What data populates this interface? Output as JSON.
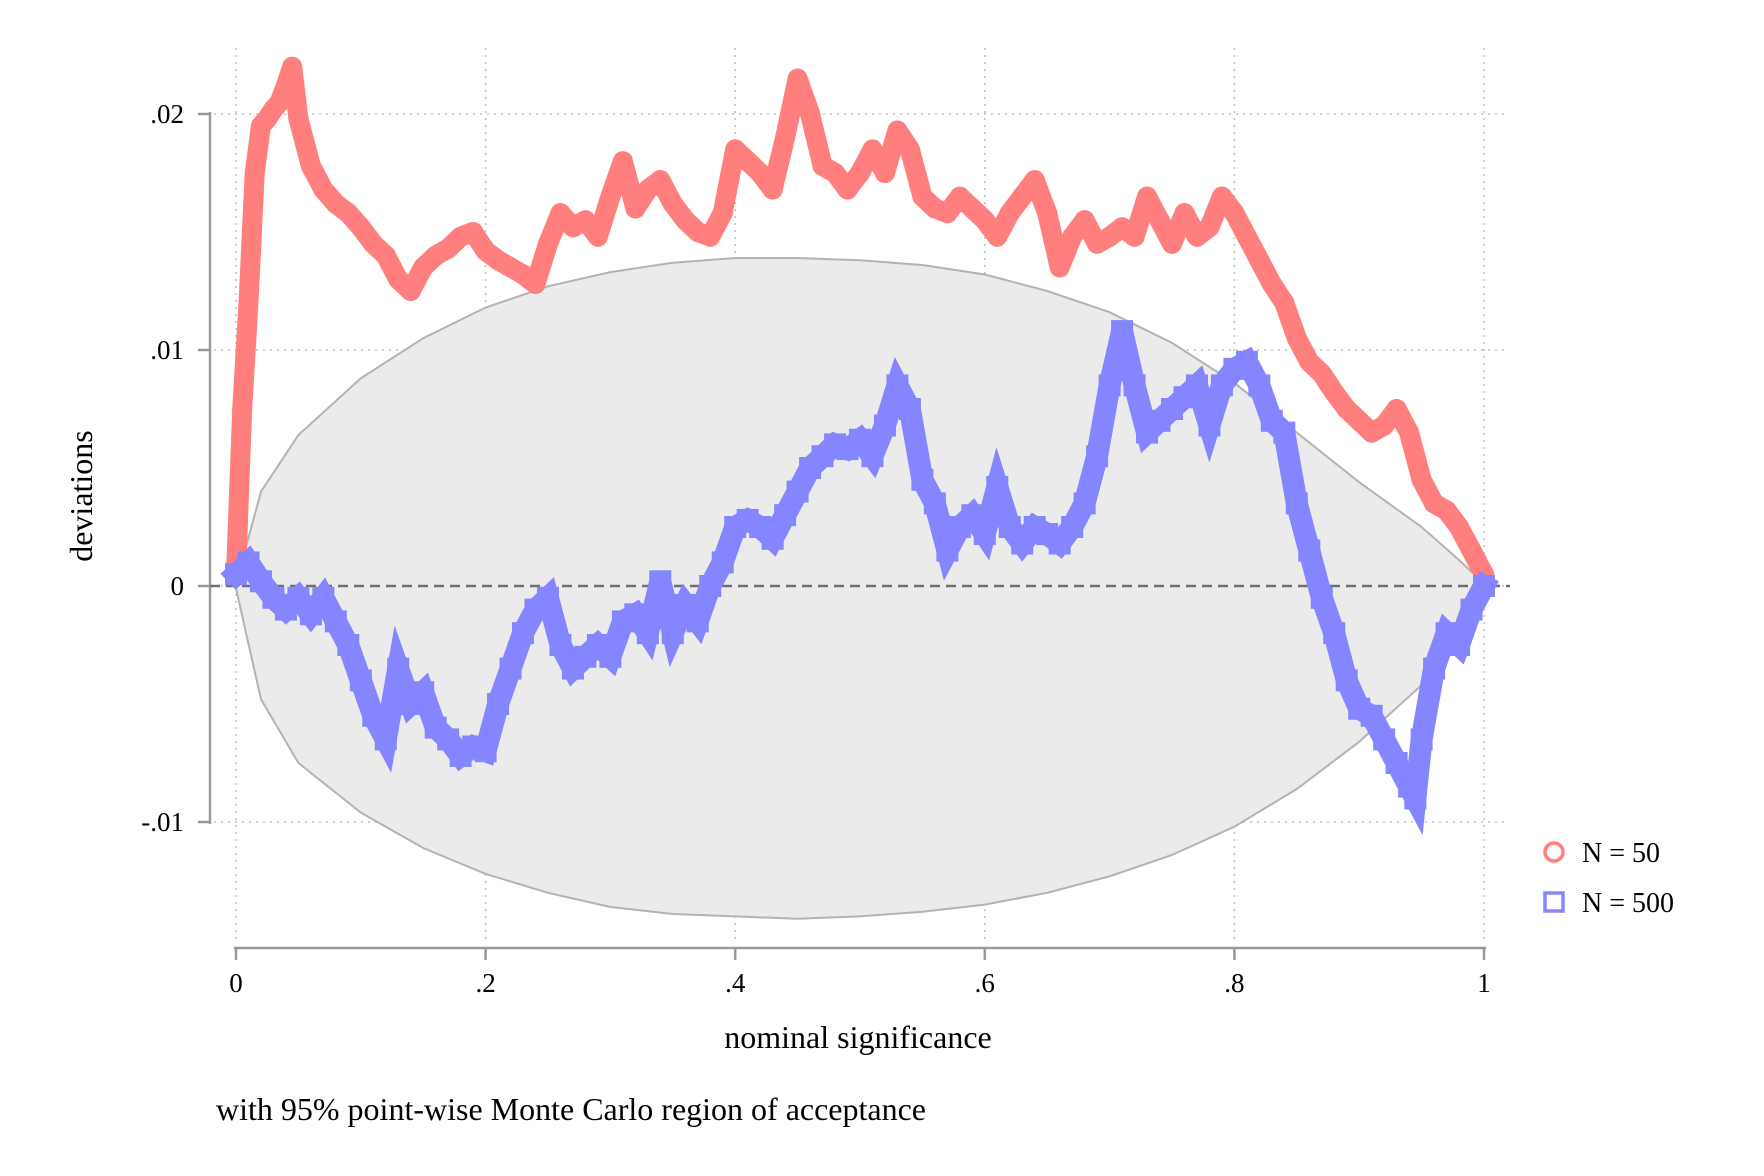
{
  "colors": {
    "n50": "#ff7f7f",
    "n500": "#8585ff",
    "band_fill": "#ebebeb",
    "band_stroke": "#b3b3b3",
    "grid": "#bfbfbf",
    "axis": "#999999",
    "zero_line": "#6e6e6e"
  },
  "chart_data": {
    "type": "line",
    "title": "",
    "xlabel": "nominal significance",
    "ylabel": "deviations",
    "note": "with 95% point-wise Monte Carlo region of acceptance",
    "xlim": [
      0,
      1
    ],
    "ylim": [
      -0.015,
      0.0225
    ],
    "x_ticks": [
      0,
      0.2,
      0.4,
      0.6,
      0.8,
      1
    ],
    "x_tick_labels": [
      "0",
      ".2",
      ".4",
      ".6",
      ".8",
      "1"
    ],
    "y_ticks": [
      -0.01,
      0,
      0.01,
      0.02
    ],
    "y_tick_labels": [
      "-.01",
      "0",
      ".01",
      ".02"
    ],
    "grid": true,
    "reference_line": {
      "y": 0,
      "style": "dashed"
    },
    "legend": {
      "position": "bottom-right",
      "entries": [
        "N = 50",
        "N = 500"
      ]
    },
    "acceptance_region": {
      "description_from_note": "95% point-wise Monte Carlo region of acceptance",
      "x": [
        0,
        0.02,
        0.05,
        0.1,
        0.15,
        0.2,
        0.25,
        0.3,
        0.35,
        0.4,
        0.45,
        0.5,
        0.55,
        0.6,
        0.65,
        0.7,
        0.75,
        0.8,
        0.85,
        0.9,
        0.95,
        0.98,
        1
      ],
      "upper": [
        0.0001,
        0.004,
        0.0064,
        0.0088,
        0.0105,
        0.0118,
        0.0127,
        0.0133,
        0.0137,
        0.0139,
        0.0139,
        0.0138,
        0.0136,
        0.0132,
        0.0125,
        0.0116,
        0.0103,
        0.0086,
        0.0065,
        0.0044,
        0.0025,
        0.0011,
        0.0001
      ],
      "lower": [
        -0.0001,
        -0.0048,
        -0.0075,
        -0.0096,
        -0.0111,
        -0.0122,
        -0.013,
        -0.0136,
        -0.0139,
        -0.014,
        -0.0141,
        -0.014,
        -0.0138,
        -0.0135,
        -0.013,
        -0.0123,
        -0.0114,
        -0.0102,
        -0.0086,
        -0.0066,
        -0.0042,
        -0.0022,
        -0.0001
      ]
    },
    "series": [
      {
        "name": "N = 50",
        "marker": "circle",
        "x": [
          0,
          0.005,
          0.01,
          0.015,
          0.02,
          0.025,
          0.03,
          0.035,
          0.04,
          0.045,
          0.05,
          0.06,
          0.07,
          0.08,
          0.09,
          0.1,
          0.11,
          0.12,
          0.13,
          0.14,
          0.15,
          0.16,
          0.17,
          0.18,
          0.19,
          0.2,
          0.21,
          0.22,
          0.23,
          0.24,
          0.25,
          0.26,
          0.27,
          0.28,
          0.29,
          0.3,
          0.31,
          0.32,
          0.33,
          0.34,
          0.35,
          0.36,
          0.37,
          0.38,
          0.39,
          0.4,
          0.41,
          0.42,
          0.43,
          0.44,
          0.45,
          0.46,
          0.47,
          0.48,
          0.49,
          0.5,
          0.51,
          0.52,
          0.53,
          0.54,
          0.55,
          0.56,
          0.57,
          0.58,
          0.59,
          0.6,
          0.61,
          0.62,
          0.63,
          0.64,
          0.65,
          0.66,
          0.67,
          0.68,
          0.69,
          0.7,
          0.71,
          0.72,
          0.73,
          0.74,
          0.75,
          0.76,
          0.77,
          0.78,
          0.79,
          0.8,
          0.81,
          0.82,
          0.83,
          0.84,
          0.85,
          0.86,
          0.87,
          0.88,
          0.89,
          0.9,
          0.91,
          0.92,
          0.93,
          0.94,
          0.95,
          0.96,
          0.97,
          0.98,
          0.99,
          1
        ],
        "values": [
          0.0005,
          0.0075,
          0.012,
          0.0175,
          0.0195,
          0.0198,
          0.0202,
          0.0205,
          0.0212,
          0.022,
          0.0198,
          0.0178,
          0.0168,
          0.0162,
          0.0158,
          0.0152,
          0.0145,
          0.014,
          0.013,
          0.0125,
          0.0135,
          0.014,
          0.0143,
          0.0148,
          0.015,
          0.0142,
          0.0138,
          0.0135,
          0.0132,
          0.0128,
          0.0145,
          0.0158,
          0.0152,
          0.0155,
          0.0148,
          0.0165,
          0.018,
          0.016,
          0.0168,
          0.0172,
          0.0162,
          0.0155,
          0.015,
          0.0148,
          0.0158,
          0.0185,
          0.018,
          0.0175,
          0.0168,
          0.019,
          0.0215,
          0.02,
          0.0178,
          0.0175,
          0.0168,
          0.0175,
          0.0185,
          0.0175,
          0.0193,
          0.0185,
          0.0165,
          0.016,
          0.0158,
          0.0165,
          0.016,
          0.0155,
          0.0148,
          0.0158,
          0.0165,
          0.0172,
          0.0158,
          0.0135,
          0.0148,
          0.0155,
          0.0145,
          0.0148,
          0.0152,
          0.0148,
          0.0165,
          0.0155,
          0.0145,
          0.0158,
          0.0148,
          0.0152,
          0.0165,
          0.0158,
          0.0148,
          0.0138,
          0.0128,
          0.012,
          0.0105,
          0.0095,
          0.009,
          0.0082,
          0.0075,
          0.007,
          0.0065,
          0.0068,
          0.0075,
          0.0065,
          0.0045,
          0.0035,
          0.0032,
          0.0025,
          0.0015,
          0.0005
        ]
      },
      {
        "name": "N = 500",
        "marker": "square",
        "x": [
          0,
          0.01,
          0.02,
          0.03,
          0.04,
          0.05,
          0.06,
          0.07,
          0.08,
          0.09,
          0.1,
          0.11,
          0.12,
          0.13,
          0.14,
          0.15,
          0.16,
          0.17,
          0.18,
          0.19,
          0.2,
          0.21,
          0.22,
          0.23,
          0.24,
          0.25,
          0.26,
          0.27,
          0.28,
          0.29,
          0.3,
          0.31,
          0.32,
          0.33,
          0.34,
          0.35,
          0.36,
          0.37,
          0.38,
          0.39,
          0.4,
          0.41,
          0.42,
          0.43,
          0.44,
          0.45,
          0.46,
          0.47,
          0.48,
          0.49,
          0.5,
          0.51,
          0.52,
          0.53,
          0.54,
          0.55,
          0.56,
          0.57,
          0.58,
          0.59,
          0.6,
          0.61,
          0.62,
          0.63,
          0.64,
          0.65,
          0.66,
          0.67,
          0.68,
          0.69,
          0.7,
          0.71,
          0.72,
          0.73,
          0.74,
          0.75,
          0.76,
          0.77,
          0.78,
          0.79,
          0.8,
          0.81,
          0.82,
          0.83,
          0.84,
          0.85,
          0.86,
          0.87,
          0.88,
          0.89,
          0.9,
          0.91,
          0.92,
          0.93,
          0.94,
          0.945,
          0.95,
          0.96,
          0.97,
          0.98,
          0.99,
          1
        ],
        "values": [
          0.0005,
          0.001,
          0.0002,
          -0.0005,
          -0.001,
          -0.0005,
          -0.0012,
          -0.0005,
          -0.0015,
          -0.0025,
          -0.004,
          -0.0055,
          -0.0065,
          -0.0035,
          -0.005,
          -0.0045,
          -0.006,
          -0.0065,
          -0.0072,
          -0.0068,
          -0.007,
          -0.005,
          -0.0035,
          -0.002,
          -0.001,
          -0.0005,
          -0.0025,
          -0.0035,
          -0.003,
          -0.0025,
          -0.003,
          -0.0015,
          -0.0012,
          -0.002,
          0.0002,
          -0.002,
          -0.0008,
          -0.0015,
          0.0,
          0.001,
          0.0025,
          0.0028,
          0.0025,
          0.002,
          0.003,
          0.004,
          0.005,
          0.0055,
          0.006,
          0.0058,
          0.0062,
          0.0055,
          0.0068,
          0.0085,
          0.0075,
          0.0045,
          0.0035,
          0.0015,
          0.0025,
          0.003,
          0.0022,
          0.0042,
          0.0025,
          0.0018,
          0.0025,
          0.0022,
          0.0018,
          0.0025,
          0.0035,
          0.0055,
          0.0085,
          0.0108,
          0.0085,
          0.0065,
          0.007,
          0.0075,
          0.008,
          0.0085,
          0.0068,
          0.0085,
          0.0092,
          0.0095,
          0.0085,
          0.007,
          0.0065,
          0.0035,
          0.0015,
          -0.0005,
          -0.002,
          -0.004,
          -0.0052,
          -0.0055,
          -0.0065,
          -0.0075,
          -0.0085,
          -0.009,
          -0.0065,
          -0.0035,
          -0.002,
          -0.0025,
          -0.001,
          0.0
        ]
      }
    ]
  }
}
